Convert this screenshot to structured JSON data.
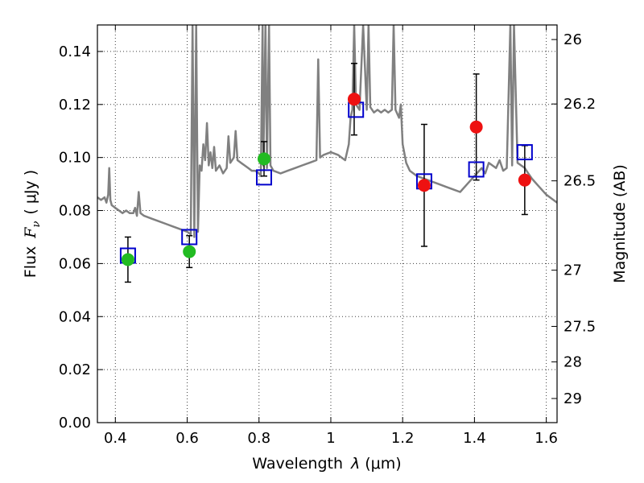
{
  "chart_data": {
    "type": "scatter",
    "xlabel": "Wavelength",
    "xlabel_symbol": "λ",
    "xlabel_unit": "(μm)",
    "ylabel": "Flux",
    "ylabel_symbol": "F",
    "ylabel_subscript": "ν",
    "ylabel_unit": "( μJy )",
    "y2label": "Magnitude (AB)",
    "xlim": [
      0.35,
      1.63
    ],
    "ylim": [
      0.0,
      0.15
    ],
    "grid": true,
    "x_ticks": [
      0.4,
      0.6,
      0.8,
      1.0,
      1.2,
      1.4,
      1.6
    ],
    "x_tick_labels": [
      "0.4",
      "0.6",
      "0.8",
      "1",
      "1.2",
      "1.4",
      "1.6"
    ],
    "y_ticks": [
      0.0,
      0.02,
      0.04,
      0.06,
      0.08,
      0.1,
      0.12,
      0.14
    ],
    "y_tick_labels": [
      "0.00",
      "0.02",
      "0.04",
      "0.06",
      "0.08",
      "0.10",
      "0.12",
      "0.14"
    ],
    "y2_ticks": [
      {
        "label": "26",
        "flux": 0.1445
      },
      {
        "label": "26.2",
        "flux": 0.1202
      },
      {
        "label": "26.5",
        "flux": 0.0912
      },
      {
        "label": "27",
        "flux": 0.0575
      },
      {
        "label": "27.5",
        "flux": 0.0363
      },
      {
        "label": "28",
        "flux": 0.0229
      },
      {
        "label": "29",
        "flux": 0.0091
      }
    ],
    "series": [
      {
        "kind": "line",
        "color": "#808080",
        "points": [
          [
            0.35,
            0.085
          ],
          [
            0.36,
            0.084
          ],
          [
            0.37,
            0.085
          ],
          [
            0.375,
            0.083
          ],
          [
            0.38,
            0.086
          ],
          [
            0.383,
            0.096
          ],
          [
            0.386,
            0.084
          ],
          [
            0.39,
            0.082
          ],
          [
            0.4,
            0.081
          ],
          [
            0.41,
            0.08
          ],
          [
            0.42,
            0.079
          ],
          [
            0.43,
            0.08
          ],
          [
            0.44,
            0.079
          ],
          [
            0.45,
            0.079
          ],
          [
            0.455,
            0.081
          ],
          [
            0.46,
            0.078
          ],
          [
            0.465,
            0.087
          ],
          [
            0.47,
            0.079
          ],
          [
            0.48,
            0.078
          ],
          [
            0.5,
            0.077
          ],
          [
            0.52,
            0.076
          ],
          [
            0.54,
            0.075
          ],
          [
            0.56,
            0.074
          ],
          [
            0.58,
            0.073
          ],
          [
            0.6,
            0.072
          ],
          [
            0.61,
            0.071
          ],
          [
            0.615,
            0.15
          ],
          [
            0.62,
            0.07
          ],
          [
            0.625,
            0.15
          ],
          [
            0.63,
            0.072
          ],
          [
            0.635,
            0.097
          ],
          [
            0.64,
            0.095
          ],
          [
            0.645,
            0.105
          ],
          [
            0.65,
            0.099
          ],
          [
            0.655,
            0.113
          ],
          [
            0.66,
            0.097
          ],
          [
            0.665,
            0.102
          ],
          [
            0.67,
            0.096
          ],
          [
            0.675,
            0.104
          ],
          [
            0.68,
            0.095
          ],
          [
            0.69,
            0.097
          ],
          [
            0.7,
            0.094
          ],
          [
            0.71,
            0.096
          ],
          [
            0.715,
            0.108
          ],
          [
            0.72,
            0.098
          ],
          [
            0.73,
            0.1
          ],
          [
            0.735,
            0.11
          ],
          [
            0.74,
            0.099
          ],
          [
            0.75,
            0.098
          ],
          [
            0.76,
            0.097
          ],
          [
            0.77,
            0.096
          ],
          [
            0.78,
            0.095
          ],
          [
            0.79,
            0.095
          ],
          [
            0.8,
            0.094
          ],
          [
            0.805,
            0.093
          ],
          [
            0.81,
            0.15
          ],
          [
            0.812,
            0.097
          ],
          [
            0.818,
            0.15
          ],
          [
            0.822,
            0.096
          ],
          [
            0.828,
            0.15
          ],
          [
            0.832,
            0.097
          ],
          [
            0.84,
            0.095
          ],
          [
            0.86,
            0.094
          ],
          [
            0.88,
            0.095
          ],
          [
            0.9,
            0.096
          ],
          [
            0.92,
            0.097
          ],
          [
            0.94,
            0.098
          ],
          [
            0.96,
            0.099
          ],
          [
            0.965,
            0.137
          ],
          [
            0.97,
            0.1
          ],
          [
            0.98,
            0.101
          ],
          [
            1.0,
            0.102
          ],
          [
            1.02,
            0.101
          ],
          [
            1.03,
            0.1
          ],
          [
            1.04,
            0.099
          ],
          [
            1.05,
            0.105
          ],
          [
            1.055,
            0.115
          ],
          [
            1.06,
            0.118
          ],
          [
            1.065,
            0.15
          ],
          [
            1.07,
            0.12
          ],
          [
            1.08,
            0.118
          ],
          [
            1.09,
            0.15
          ],
          [
            1.1,
            0.118
          ],
          [
            1.105,
            0.15
          ],
          [
            1.11,
            0.119
          ],
          [
            1.12,
            0.117
          ],
          [
            1.13,
            0.118
          ],
          [
            1.14,
            0.117
          ],
          [
            1.15,
            0.118
          ],
          [
            1.16,
            0.117
          ],
          [
            1.17,
            0.118
          ],
          [
            1.175,
            0.15
          ],
          [
            1.18,
            0.118
          ],
          [
            1.19,
            0.115
          ],
          [
            1.195,
            0.12
          ],
          [
            1.2,
            0.105
          ],
          [
            1.21,
            0.098
          ],
          [
            1.22,
            0.095
          ],
          [
            1.24,
            0.093
          ],
          [
            1.26,
            0.092
          ],
          [
            1.28,
            0.091
          ],
          [
            1.3,
            0.09
          ],
          [
            1.32,
            0.089
          ],
          [
            1.34,
            0.088
          ],
          [
            1.36,
            0.087
          ],
          [
            1.38,
            0.09
          ],
          [
            1.4,
            0.093
          ],
          [
            1.42,
            0.096
          ],
          [
            1.43,
            0.094
          ],
          [
            1.44,
            0.098
          ],
          [
            1.45,
            0.097
          ],
          [
            1.46,
            0.096
          ],
          [
            1.47,
            0.099
          ],
          [
            1.48,
            0.095
          ],
          [
            1.49,
            0.096
          ],
          [
            1.5,
            0.15
          ],
          [
            1.505,
            0.097
          ],
          [
            1.51,
            0.15
          ],
          [
            1.52,
            0.098
          ],
          [
            1.53,
            0.097
          ],
          [
            1.54,
            0.096
          ],
          [
            1.55,
            0.094
          ],
          [
            1.56,
            0.092
          ],
          [
            1.58,
            0.089
          ],
          [
            1.6,
            0.086
          ],
          [
            1.62,
            0.084
          ],
          [
            1.63,
            0.083
          ]
        ]
      },
      {
        "kind": "observed",
        "color": "#22bb22",
        "points": [
          {
            "x": 0.435,
            "y": 0.0615,
            "err": 0.0085
          },
          {
            "x": 0.606,
            "y": 0.0645,
            "err": 0.006
          },
          {
            "x": 0.814,
            "y": 0.0995,
            "err": 0.0065
          }
        ]
      },
      {
        "kind": "observed",
        "color": "#ee1111",
        "points": [
          {
            "x": 1.065,
            "y": 0.122,
            "err": 0.0135
          },
          {
            "x": 1.26,
            "y": 0.0895,
            "err": 0.023
          },
          {
            "x": 1.405,
            "y": 0.1115,
            "err": 0.02
          },
          {
            "x": 1.54,
            "y": 0.0915,
            "err": 0.013
          }
        ]
      },
      {
        "kind": "model",
        "color": "#0000cc",
        "points": [
          {
            "x": 0.435,
            "y": 0.063
          },
          {
            "x": 0.606,
            "y": 0.07
          },
          {
            "x": 0.814,
            "y": 0.0925
          },
          {
            "x": 1.07,
            "y": 0.118
          },
          {
            "x": 1.26,
            "y": 0.091
          },
          {
            "x": 1.405,
            "y": 0.0955
          },
          {
            "x": 1.54,
            "y": 0.102
          }
        ]
      }
    ]
  }
}
